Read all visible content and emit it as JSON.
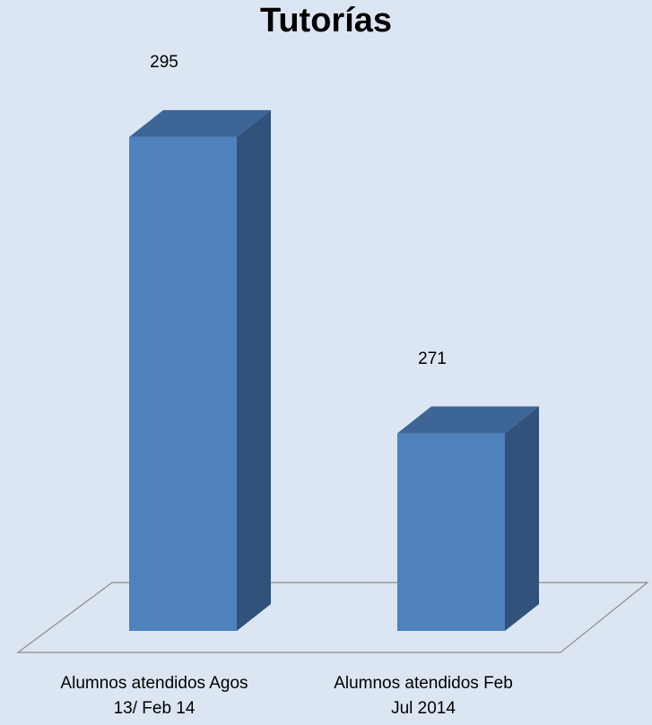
{
  "chart_data": {
    "type": "bar",
    "title": "Tutorías",
    "categories": [
      "Alumnos atendidos Agos 13/ Feb 14",
      "Alumnos atendidos Feb Jul 2014"
    ],
    "category_lines": [
      [
        "Alumnos atendidos Agos",
        "13/ Feb 14"
      ],
      [
        "Alumnos atendidos Feb",
        "Jul 2014"
      ]
    ],
    "values": [
      295,
      271
    ],
    "data_labels": [
      "295",
      "271"
    ],
    "ylim": [
      255,
      300
    ],
    "grid": false,
    "legend": "none",
    "three_d": true,
    "colors": {
      "background": "#dce6f2",
      "bar_front": "#4f81bd",
      "bar_side": "#31527b",
      "bar_top": "#3d6596",
      "floor_stroke": "#8c8c8c"
    }
  }
}
